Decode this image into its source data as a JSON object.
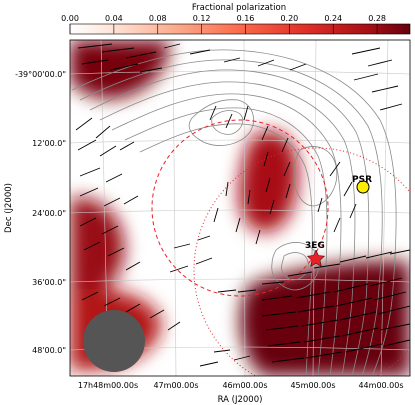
{
  "chart_data": {
    "type": "heatmap",
    "title": "",
    "colorbar": {
      "label": "Fractional polarization",
      "ticks": [
        "0.00",
        "0.04",
        "0.08",
        "0.12",
        "0.16",
        "0.20",
        "0.24",
        "0.28"
      ],
      "range": [
        0.0,
        0.31
      ],
      "colormap": "Reds"
    },
    "xlabel": "RA (J2000)",
    "ylabel": "Dec (J2000)",
    "x_ticks": [
      "17h48m00.00s",
      "47m00.00s",
      "46m00.00s",
      "45m00.00s",
      "44m00.00s"
    ],
    "y_ticks": [
      "-39°00'00.0\"",
      "12'00.0\"",
      "24'00.0\"",
      "36'00.0\"",
      "48'00.0\""
    ],
    "grid": true,
    "polarization_blobs": [
      {
        "label": "upper-left",
        "value": 0.3
      },
      {
        "label": "center",
        "value": 0.27
      },
      {
        "label": "left",
        "value": 0.28
      },
      {
        "label": "lower-left",
        "value": 0.26
      },
      {
        "label": "lower-right",
        "value": 0.31
      }
    ],
    "markers": [
      {
        "name": "PSR",
        "symbol": "circle",
        "color": "#ffee00"
      },
      {
        "name": "3EG",
        "symbol": "star",
        "color": "#e8202a"
      }
    ],
    "overlays": [
      "red dashed circle around 3EG position",
      "red dotted error ellipse",
      "grey intensity contours",
      "polarization vectors (black)",
      "beam (grey disc)"
    ],
    "colors": {
      "polarization_high": "#8b0a16",
      "polarization_mid": "#d8412f",
      "beam": "#555555",
      "contour": "#888888"
    }
  }
}
